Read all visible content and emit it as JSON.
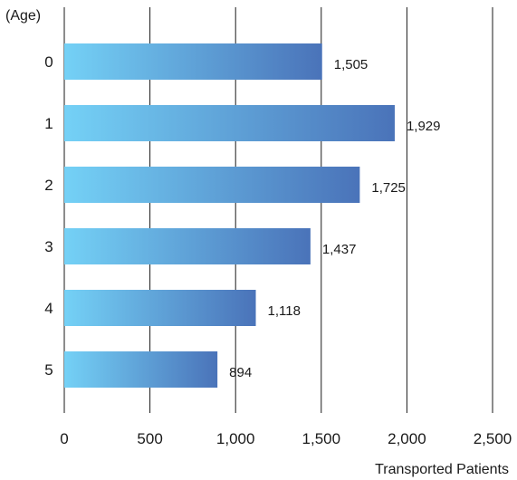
{
  "chart_data": {
    "type": "bar",
    "orientation": "horizontal",
    "categories": [
      "0",
      "1",
      "2",
      "3",
      "4",
      "5"
    ],
    "values": [
      1505,
      1929,
      1725,
      1437,
      1118,
      894
    ],
    "value_labels": [
      "1,505",
      "1,929",
      "1,725",
      "1,437",
      "1,118",
      "894"
    ],
    "x_ticks": [
      0,
      500,
      1000,
      1500,
      2000,
      2500
    ],
    "x_tick_labels": [
      "0",
      "500",
      "1,000",
      "1,500",
      "2,000",
      "2,500"
    ],
    "xlim": [
      0,
      2500
    ],
    "xlabel": "Transported Patients",
    "ylabel": "(Age)",
    "grid": "vertical",
    "colors": {
      "bar_start": "#74d1f6",
      "bar_end": "#4a73b9",
      "grid": "#1a1a1a"
    }
  }
}
